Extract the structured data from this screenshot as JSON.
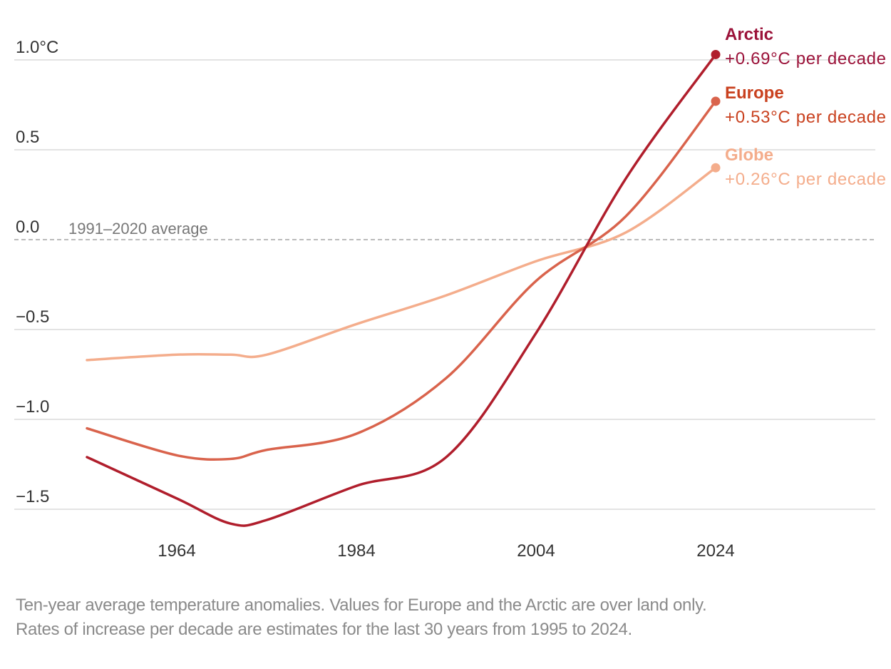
{
  "chart_data": {
    "type": "line",
    "title": "",
    "xlabel": "",
    "ylabel": "",
    "x_ticks": [
      "1964",
      "1984",
      "2004",
      "2024"
    ],
    "y_ticks": [
      {
        "value": 1.0,
        "label": "1.0°C"
      },
      {
        "value": 0.5,
        "label": "0.5"
      },
      {
        "value": 0.0,
        "label": "0.0"
      },
      {
        "value": -0.5,
        "label": "−0.5"
      },
      {
        "value": -1.0,
        "label": "−1.0"
      },
      {
        "value": -1.5,
        "label": "−1.5"
      }
    ],
    "xlim": [
      1947,
      2034
    ],
    "ylim": [
      -1.65,
      1.2
    ],
    "grid": true,
    "reference_line": {
      "value": 0.0,
      "label": "1991–2020 average"
    },
    "x": [
      1954,
      1964,
      1970,
      1974,
      1984,
      1994,
      2004,
      2014,
      2024
    ],
    "series": [
      {
        "name": "Arctic",
        "rate": "+0.69°C per decade",
        "color": "#b01e2c",
        "label_color": "#9b1239",
        "values": [
          -1.21,
          -1.44,
          -1.58,
          -1.56,
          -1.37,
          -1.21,
          -0.52,
          0.34,
          1.03
        ]
      },
      {
        "name": "Europe",
        "rate": "+0.53°C per decade",
        "color": "#d9634c",
        "label_color": "#c9411f",
        "values": [
          -1.05,
          -1.2,
          -1.22,
          -1.17,
          -1.08,
          -0.77,
          -0.23,
          0.13,
          0.77
        ]
      },
      {
        "name": "Globe",
        "rate": "+0.26°C per decade",
        "color": "#f4ad8c",
        "label_color": "#f4ad8c",
        "values": [
          -0.67,
          -0.64,
          -0.64,
          -0.64,
          -0.47,
          -0.31,
          -0.12,
          0.04,
          0.4
        ]
      }
    ]
  },
  "caption": {
    "line1": "Ten-year average temperature anomalies. Values for Europe and the Arctic are over land only.",
    "line2": "Rates of increase per decade are estimates for the last 30 years from 1995 to 2024."
  }
}
